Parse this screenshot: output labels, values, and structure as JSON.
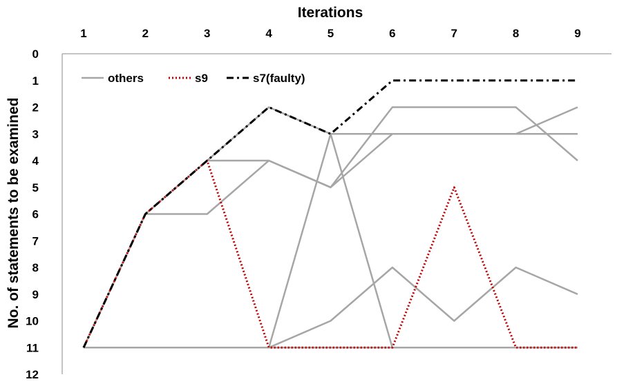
{
  "chart_data": {
    "type": "line",
    "xlabel": "Iterations",
    "ylabel": "No. of statements to be examined",
    "x": [
      1,
      2,
      3,
      4,
      5,
      6,
      7,
      8,
      9
    ],
    "xlim": [
      1,
      9
    ],
    "ylim": [
      0,
      12
    ],
    "y_axis_inverted": true,
    "x_axis_position": "top",
    "grid": false,
    "legend_position": "top-left",
    "legend": [
      "others",
      "s9",
      "s7(faulty)"
    ],
    "series": [
      {
        "name": "others",
        "values": [
          11,
          6,
          6,
          4,
          5,
          2,
          2,
          2,
          4
        ]
      },
      {
        "name": "others",
        "values": [
          11,
          6,
          4,
          4,
          5,
          3,
          3,
          3,
          2
        ]
      },
      {
        "name": "others",
        "values": [
          11,
          6,
          4,
          2,
          3,
          11,
          11,
          11,
          11
        ]
      },
      {
        "name": "others",
        "values": [
          11,
          11,
          11,
          11,
          10,
          8,
          10,
          8,
          9
        ]
      },
      {
        "name": "others",
        "values": [
          11,
          11,
          11,
          11,
          3,
          3,
          3,
          3,
          3
        ]
      },
      {
        "name": "others",
        "values": [
          11,
          11,
          11,
          11,
          11,
          11,
          11,
          11,
          11
        ]
      },
      {
        "name": "s9",
        "values": [
          11,
          6,
          4,
          11,
          11,
          11,
          5,
          11,
          11
        ]
      },
      {
        "name": "s7(faulty)",
        "values": [
          11,
          6,
          4,
          2,
          3,
          1,
          1,
          1,
          1
        ]
      }
    ],
    "colors": {
      "others": "#a6a6a6",
      "s9": "#c00000",
      "s7": "#000000"
    }
  }
}
